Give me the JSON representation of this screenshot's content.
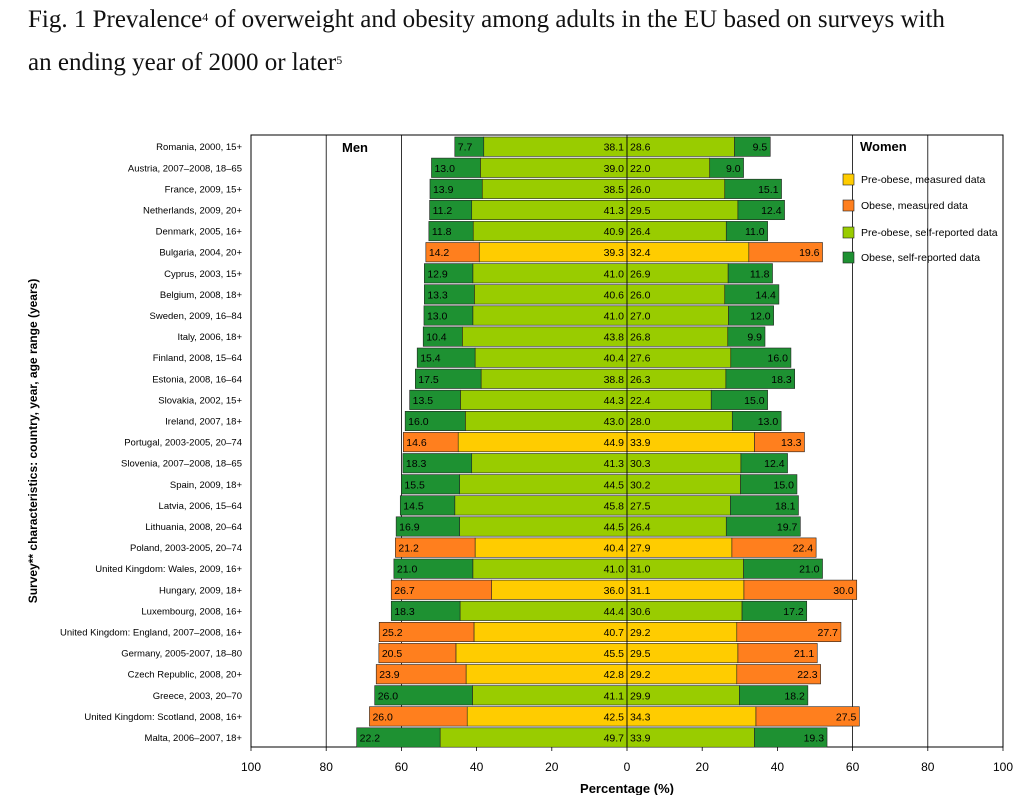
{
  "title": {
    "line1_a": "Fig. 1 Prevalence",
    "line1_sup": "4",
    "line1_b": " of overweight and obesity among adults in the EU based on surveys with",
    "line2_a": "an ending year of 2000 or later",
    "line2_sup": "5"
  },
  "colors": {
    "pre_obese_measured": "#FFCC00",
    "obese_measured": "#FF7F1E",
    "pre_obese_self": "#99CC00",
    "obese_self": "#1E9132"
  },
  "chart_data": {
    "type": "bar",
    "subtype": "horizontal-stacked-population-pyramid",
    "xlabel": "Percentage (%)",
    "ylabel": "Survey** characteristics: country, year, age range (years)",
    "xlim": [
      -100,
      100
    ],
    "xticks": [
      "100",
      "80",
      "60",
      "40",
      "20",
      "0",
      "20",
      "40",
      "60",
      "80",
      "100"
    ],
    "panel_labels": {
      "left": "Men",
      "right": "Women"
    },
    "legend": [
      {
        "label": "Pre-obese, measured data",
        "color": "#FFCC00"
      },
      {
        "label": "Obese, measured data",
        "color": "#FF7F1E"
      },
      {
        "label": "Pre-obese, self-reported data",
        "color": "#99CC00"
      },
      {
        "label": "Obese, self-reported data",
        "color": "#1E9132"
      }
    ],
    "categories": [
      "Romania, 2000, 15+",
      "Austria, 2007–2008, 18–65",
      "France, 2009, 15+",
      "Netherlands, 2009, 20+",
      "Denmark, 2005, 16+",
      "Bulgaria, 2004, 20+",
      "Cyprus, 2003, 15+",
      "Belgium, 2008, 18+",
      "Sweden, 2009, 16–84",
      "Italy, 2006, 18+",
      "Finland, 2008, 15–64",
      "Estonia, 2008, 16–64",
      "Slovakia, 2002, 15+",
      "Ireland, 2007, 18+",
      "Portugal, 2003-2005, 20–74",
      "Slovenia, 2007–2008, 18–65",
      "Spain, 2009, 18+",
      "Latvia, 2006, 15–64",
      "Lithuania, 2008, 20–64",
      "Poland, 2003-2005, 20–74",
      "United Kingdom: Wales, 2009, 16+",
      "Hungary, 2009, 18+",
      "Luxembourg, 2008, 16+",
      "United Kingdom: England, 2007–2008, 16+",
      "Germany, 2005-2007, 18–80",
      "Czech Republic, 2008, 20+",
      "Greece, 2003, 20–70",
      "United Kingdom: Scotland, 2008, 16+",
      "Malta, 2006–2007, 18+"
    ],
    "data_type": [
      "self",
      "self",
      "self",
      "self",
      "self",
      "measured",
      "self",
      "self",
      "self",
      "self",
      "self",
      "self",
      "self",
      "self",
      "measured",
      "self",
      "self",
      "self",
      "self",
      "measured",
      "self",
      "measured",
      "self",
      "measured",
      "measured",
      "measured",
      "self",
      "measured",
      "self"
    ],
    "men_obese": [
      7.7,
      13.0,
      13.9,
      11.2,
      11.8,
      14.2,
      12.9,
      13.3,
      13.0,
      10.4,
      15.4,
      17.5,
      13.5,
      16.0,
      14.6,
      18.3,
      15.5,
      14.5,
      16.9,
      21.2,
      21.0,
      26.7,
      18.3,
      25.2,
      20.5,
      23.9,
      26.0,
      26.0,
      22.2
    ],
    "men_pre_obese": [
      38.1,
      39.0,
      38.5,
      41.3,
      40.9,
      39.3,
      41.0,
      40.6,
      41.0,
      43.8,
      40.4,
      38.8,
      44.3,
      43.0,
      44.9,
      41.3,
      44.5,
      45.8,
      44.5,
      40.4,
      41.0,
      36.0,
      44.4,
      40.7,
      45.5,
      42.8,
      41.1,
      42.5,
      49.7
    ],
    "women_pre_obese": [
      28.6,
      22.0,
      26.0,
      29.5,
      26.4,
      32.4,
      26.9,
      26.0,
      27.0,
      26.8,
      27.6,
      26.3,
      22.4,
      28.0,
      33.9,
      30.3,
      30.2,
      27.5,
      26.4,
      27.9,
      31.0,
      31.1,
      30.6,
      29.2,
      29.5,
      29.2,
      29.9,
      34.3,
      33.9
    ],
    "women_obese": [
      9.5,
      9.0,
      15.1,
      12.4,
      11.0,
      19.6,
      11.8,
      14.4,
      12.0,
      9.9,
      16.0,
      18.3,
      15.0,
      13.0,
      13.3,
      12.4,
      15.0,
      18.1,
      19.7,
      22.4,
      21.0,
      30.0,
      17.2,
      27.7,
      21.1,
      22.3,
      18.2,
      27.5,
      19.3
    ]
  }
}
